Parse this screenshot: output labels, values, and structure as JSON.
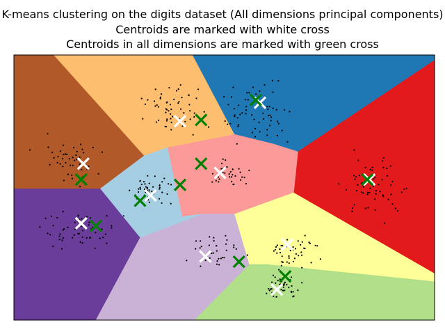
{
  "chart_data": {
    "type": "scatter",
    "title_lines": [
      "K-means clustering on the digits dataset (All dimensions principal components)",
      "Centroids are marked with white cross",
      "Centroids in all dimensions are marked with green cross"
    ],
    "xlabel": "",
    "ylabel": "",
    "ticks_visible": false,
    "xlim": [
      0,
      100
    ],
    "ylim": [
      0,
      100
    ],
    "regions": [
      {
        "color": "#b15928",
        "polygon": [
          [
            0,
            100
          ],
          [
            9.5,
            100
          ],
          [
            31,
            62
          ],
          [
            20.5,
            49.5
          ],
          [
            0,
            49.5
          ]
        ]
      },
      {
        "color": "#fdbf6f",
        "polygon": [
          [
            9.5,
            100
          ],
          [
            42.5,
            100
          ],
          [
            52.5,
            70
          ],
          [
            36.5,
            65
          ],
          [
            31,
            62
          ]
        ]
      },
      {
        "color": "#1f78b4",
        "polygon": [
          [
            42.5,
            100
          ],
          [
            100,
            100
          ],
          [
            100,
            98
          ],
          [
            67.5,
            63.5
          ],
          [
            61.5,
            66.5
          ],
          [
            52.5,
            70
          ]
        ]
      },
      {
        "color": "#e31a1c",
        "polygon": [
          [
            67.5,
            63.5
          ],
          [
            100,
            98
          ],
          [
            100,
            17.5
          ],
          [
            66.5,
            48
          ]
        ]
      },
      {
        "color": "#fb9a99",
        "polygon": [
          [
            36.5,
            65
          ],
          [
            52.5,
            70
          ],
          [
            61.5,
            66.5
          ],
          [
            67.5,
            63.5
          ],
          [
            66.5,
            48
          ],
          [
            52.5,
            40
          ],
          [
            45,
            40
          ],
          [
            40,
            39
          ]
        ]
      },
      {
        "color": "#a6cee3",
        "polygon": [
          [
            31,
            62
          ],
          [
            36.5,
            65
          ],
          [
            40,
            39
          ],
          [
            45,
            40
          ],
          [
            30,
            31
          ],
          [
            20.5,
            49.5
          ]
        ]
      },
      {
        "color": "#6a3d9a",
        "polygon": [
          [
            0,
            49.5
          ],
          [
            20.5,
            49.5
          ],
          [
            30,
            31
          ],
          [
            19.5,
            0
          ],
          [
            0,
            0
          ]
        ]
      },
      {
        "color": "#cab2d6",
        "polygon": [
          [
            30,
            31
          ],
          [
            45,
            40
          ],
          [
            52.5,
            40
          ],
          [
            56,
            21
          ],
          [
            43,
            0
          ],
          [
            19.5,
            0
          ]
        ]
      },
      {
        "color": "#ffff99",
        "polygon": [
          [
            52.5,
            40
          ],
          [
            66.5,
            48
          ],
          [
            100,
            17.5
          ],
          [
            100,
            14.5
          ],
          [
            60,
            21
          ],
          [
            56,
            21
          ]
        ]
      },
      {
        "color": "#b2df8a",
        "polygon": [
          [
            56,
            21
          ],
          [
            60,
            21
          ],
          [
            100,
            14.5
          ],
          [
            100,
            0
          ],
          [
            43,
            0
          ]
        ]
      }
    ],
    "white_centroids": [
      [
        16.5,
        59
      ],
      [
        39.5,
        75
      ],
      [
        58.5,
        82
      ],
      [
        49,
        55.5
      ],
      [
        16,
        36.5
      ],
      [
        32.5,
        47
      ],
      [
        45.5,
        24
      ],
      [
        65,
        28.5
      ],
      [
        62.5,
        11.5
      ],
      [
        84.5,
        53
      ]
    ],
    "green_centroids": [
      [
        16,
        53
      ],
      [
        44.5,
        75.5
      ],
      [
        57.5,
        83
      ],
      [
        44.5,
        59
      ],
      [
        19.5,
        35.5
      ],
      [
        30,
        45
      ],
      [
        39.5,
        51
      ],
      [
        53.5,
        22
      ],
      [
        64.5,
        16.5
      ],
      [
        84,
        53
      ]
    ],
    "point_clusters": [
      {
        "center": [
          13,
          60
        ],
        "spread": [
          7,
          9
        ],
        "count": 45
      },
      {
        "center": [
          38,
          80
        ],
        "spread": [
          7,
          8
        ],
        "count": 55
      },
      {
        "center": [
          58,
          78
        ],
        "spread": [
          9,
          10
        ],
        "count": 65
      },
      {
        "center": [
          86,
          50
        ],
        "spread": [
          7,
          11
        ],
        "count": 60
      },
      {
        "center": [
          51,
          55
        ],
        "spread": [
          5,
          5
        ],
        "count": 35
      },
      {
        "center": [
          32,
          49
        ],
        "spread": [
          5,
          5
        ],
        "count": 45
      },
      {
        "center": [
          15,
          33
        ],
        "spread": [
          9,
          8
        ],
        "count": 55
      },
      {
        "center": [
          48,
          26
        ],
        "spread": [
          6,
          6
        ],
        "count": 35
      },
      {
        "center": [
          66,
          26
        ],
        "spread": [
          6,
          6
        ],
        "count": 45
      },
      {
        "center": [
          64,
          13
        ],
        "spread": [
          4,
          5
        ],
        "count": 45
      }
    ],
    "point_color": "#000000",
    "white_cross_color": "#ffffff",
    "green_cross_color": "#008000"
  }
}
